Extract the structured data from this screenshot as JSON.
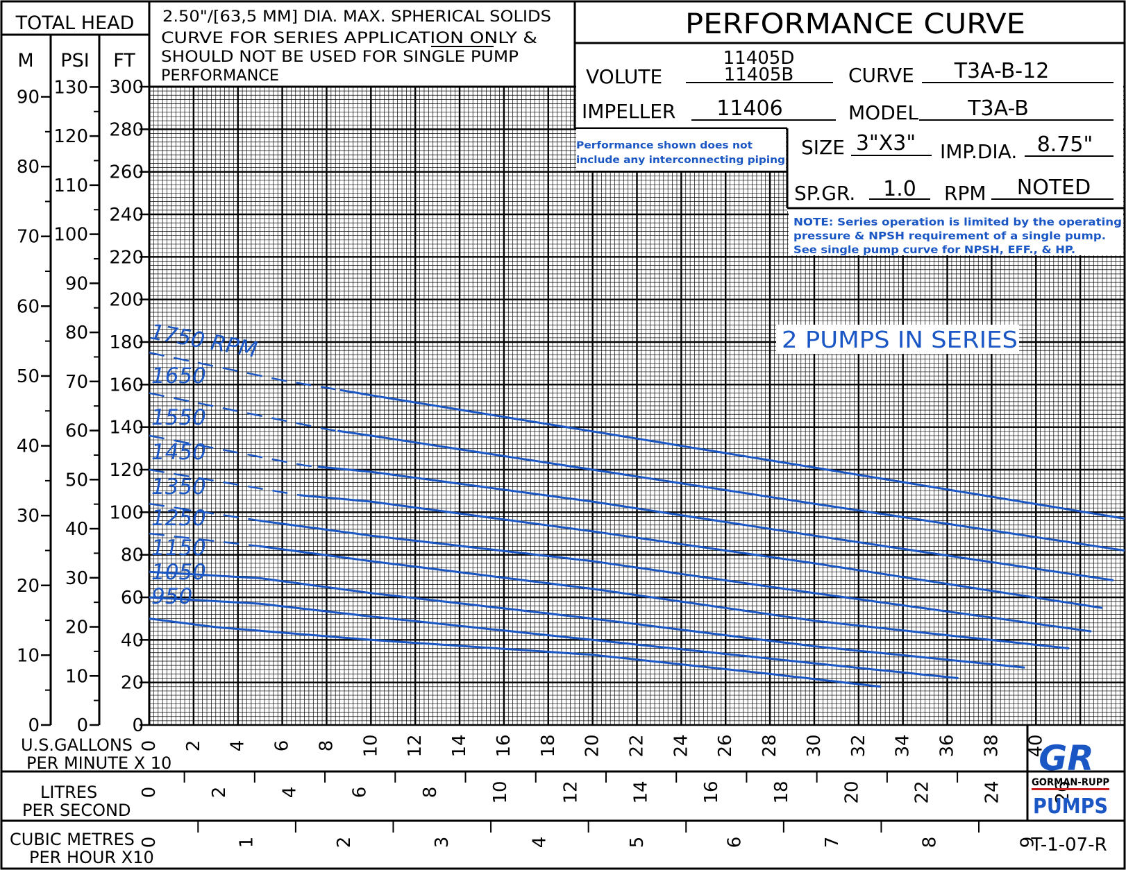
{
  "header": {
    "total_head": "TOTAL HEAD",
    "col_m": "M",
    "col_psi": "PSI",
    "col_ft": "FT",
    "title": "PERFORMANCE CURVE",
    "solids_note": [
      "2.50\"/[63,5 MM] DIA. MAX. SPHERICAL SOLIDS",
      "CURVE FOR SERIES APPLICATION ONLY &",
      "SHOULD NOT BE USED FOR SINGLE PUMP",
      "PERFORMANCE"
    ]
  },
  "specs": {
    "volute_label": "VOLUTE",
    "volute_value_1": "11405D",
    "volute_value_2": "11405B",
    "curve_label": "CURVE",
    "curve_value": "T3A-B-12",
    "impeller_label": "IMPELLER",
    "impeller_value": "11406",
    "model_label": "MODEL",
    "model_value": "T3A-B",
    "size_label": "SIZE",
    "size_value": "3\"X3\"",
    "impdia_label": "IMP.DIA.",
    "impdia_value": "8.75\"",
    "spgr_label": "SP.GR.",
    "spgr_value": "1.0",
    "rpm_label": "RPM",
    "rpm_value": "NOTED"
  },
  "notes": {
    "piping": [
      "Performance shown does not",
      "include any interconnecting piping"
    ],
    "series": [
      "NOTE: Series operation is limited by the operating",
      "pressure & NPSH requirement of a single pump.",
      "See single pump curve for NPSH, EFF., & HP."
    ],
    "series_label": "2 PUMPS IN SERIES"
  },
  "axes": {
    "gpm_label_1": "U.S.GALLONS",
    "gpm_label_2": "PER MINUTE  X 10",
    "lps_label_1": "LITRES",
    "lps_label_2": "PER SECOND",
    "cmh_label_1": "CUBIC METRES",
    "cmh_label_2": "PER HOUR  X10",
    "m_ticks": [
      "0",
      "10",
      "20",
      "30",
      "40",
      "50",
      "60",
      "70",
      "80",
      "90"
    ],
    "psi_ticks": [
      "0",
      "10",
      "20",
      "30",
      "40",
      "50",
      "60",
      "70",
      "80",
      "90",
      "100",
      "110",
      "120",
      "130"
    ],
    "ft_ticks": [
      "0",
      "20",
      "40",
      "60",
      "80",
      "100",
      "120",
      "140",
      "160",
      "180",
      "200",
      "220",
      "240",
      "260",
      "280",
      "300"
    ],
    "gpm_ticks": [
      "0",
      "2",
      "4",
      "6",
      "8",
      "10",
      "12",
      "14",
      "16",
      "18",
      "20",
      "22",
      "24",
      "26",
      "28",
      "30",
      "32",
      "34",
      "36",
      "38",
      "40"
    ],
    "lps_ticks": [
      "0",
      "2",
      "4",
      "6",
      "8",
      "10",
      "12",
      "14",
      "16",
      "18",
      "20",
      "22",
      "24",
      "26"
    ],
    "cmh_ticks": [
      "0",
      "1",
      "2",
      "3",
      "4",
      "5",
      "6",
      "7",
      "8",
      "9"
    ]
  },
  "logo": {
    "letters": "GR",
    "name": "GORMAN-RUPP",
    "pumps": "PUMPS"
  },
  "doc_code": "T-1-07-R",
  "colors": {
    "curve": "#1a56c4",
    "grid": "#000000"
  },
  "chart_data": {
    "type": "line",
    "xlabel": "U.S.GALLONS PER MINUTE X 10",
    "ylabel": "TOTAL HEAD FT",
    "xlim": [
      0,
      44
    ],
    "ylim": [
      0,
      300
    ],
    "grid": true,
    "series": [
      {
        "name": "1750 RPM",
        "label": "1750 RPM",
        "dash_to": 8.5,
        "x": [
          0,
          6,
          10,
          20,
          30,
          44
        ],
        "y": [
          175,
          162,
          155,
          138,
          121,
          97
        ]
      },
      {
        "name": "1650",
        "label": "1650",
        "dash_to": 8.5,
        "x": [
          0,
          8,
          10,
          20,
          30,
          44
        ],
        "y": [
          156,
          139,
          136,
          120,
          104,
          82
        ]
      },
      {
        "name": "1550",
        "label": "1550",
        "dash_to": 7.5,
        "x": [
          0,
          7,
          10,
          20,
          30,
          43.5
        ],
        "y": [
          136,
          122,
          119,
          105,
          89,
          68
        ]
      },
      {
        "name": "1450",
        "label": "1450",
        "dash_to": 6.8,
        "x": [
          0,
          6.8,
          10,
          20,
          30,
          43
        ],
        "y": [
          120,
          108,
          105,
          91,
          76,
          55
        ]
      },
      {
        "name": "1350",
        "label": "1350",
        "dash_to": 5.0,
        "x": [
          0,
          5,
          10,
          20,
          30,
          42.5
        ],
        "y": [
          104,
          96,
          89,
          77,
          62,
          44
        ]
      },
      {
        "name": "1250",
        "label": "1250",
        "dash_to": 5.0,
        "x": [
          0,
          5,
          10,
          20,
          30,
          41.5
        ],
        "y": [
          90,
          84,
          77,
          64,
          49,
          36
        ]
      },
      {
        "name": "1150",
        "label": "1150",
        "dash_to": 0,
        "x": [
          0,
          5,
          10,
          20,
          30,
          39.5
        ],
        "y": [
          72,
          69,
          62,
          50,
          37,
          27
        ]
      },
      {
        "name": "1050",
        "label": "1050",
        "dash_to": 0,
        "x": [
          0,
          5,
          10,
          20,
          30,
          36.5
        ],
        "y": [
          60,
          57,
          51,
          40,
          29,
          22
        ]
      },
      {
        "name": "950",
        "label": "950",
        "dash_to": 0,
        "x": [
          0,
          3,
          10,
          20,
          28,
          33
        ],
        "y": [
          50,
          46,
          40,
          33,
          24,
          18
        ]
      }
    ]
  }
}
